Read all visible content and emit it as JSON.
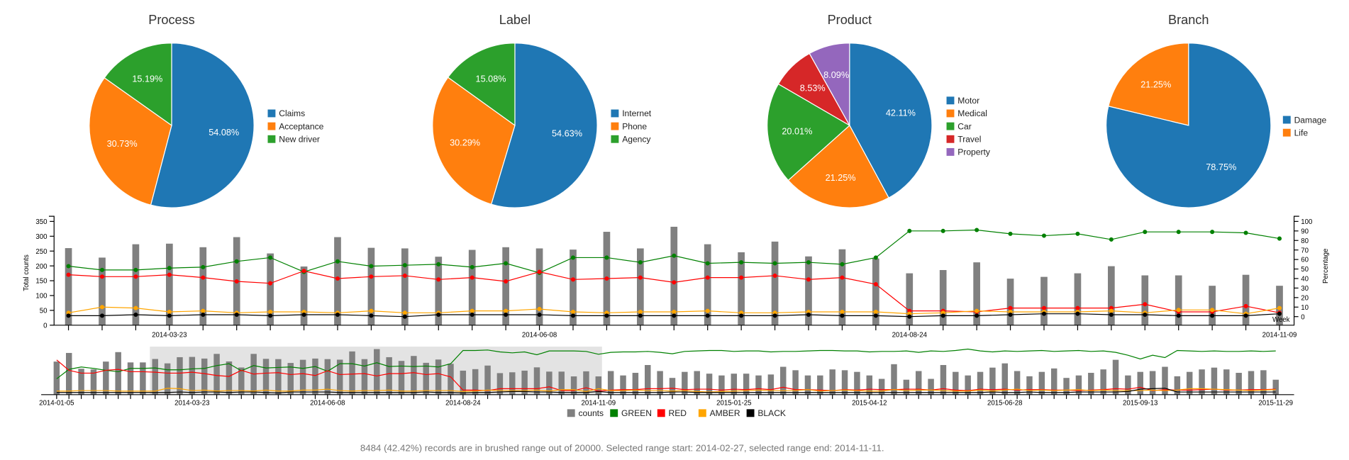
{
  "pies": [
    {
      "title": "Process",
      "slices": [
        {
          "label": "Claims",
          "value": 54.08,
          "text": "54.08%",
          "color": "#1f77b4"
        },
        {
          "label": "Acceptance",
          "value": 30.73,
          "text": "30.73%",
          "color": "#ff7f0e"
        },
        {
          "label": "New driver",
          "value": 15.19,
          "text": "15.19%",
          "color": "#2ca02c"
        }
      ]
    },
    {
      "title": "Label",
      "slices": [
        {
          "label": "Internet",
          "value": 54.63,
          "text": "54.63%",
          "color": "#1f77b4"
        },
        {
          "label": "Phone",
          "value": 30.29,
          "text": "30.29%",
          "color": "#ff7f0e"
        },
        {
          "label": "Agency",
          "value": 15.08,
          "text": "15.08%",
          "color": "#2ca02c"
        }
      ]
    },
    {
      "title": "Product",
      "slices": [
        {
          "label": "Motor",
          "value": 42.11,
          "text": "42.11%",
          "color": "#1f77b4"
        },
        {
          "label": "Medical",
          "value": 21.25,
          "text": "21.25%",
          "color": "#ff7f0e"
        },
        {
          "label": "Car",
          "value": 20.01,
          "text": "20.01%",
          "color": "#2ca02c"
        },
        {
          "label": "Travel",
          "value": 8.53,
          "text": "8.53%",
          "color": "#d62728"
        },
        {
          "label": "Property",
          "value": 8.09,
          "text": "8.09%",
          "color": "#9467bd"
        }
      ]
    },
    {
      "title": "Branch",
      "slices": [
        {
          "label": "Damage",
          "value": 78.75,
          "text": "78.75%",
          "color": "#1f77b4"
        },
        {
          "label": "Life",
          "value": 21.25,
          "text": "21.25%",
          "color": "#ff7f0e"
        }
      ]
    }
  ],
  "chart_data": [
    {
      "type": "bar+line",
      "xlabel": "Week",
      "ylabel": "Total counts",
      "ylabel_right": "Percentage",
      "x_domain": [
        "2014-02-27",
        "2014-11-11"
      ],
      "first_week": "2014-03-02",
      "interval_days": 7,
      "x_tick_labels": [
        "2014-03-23",
        "2014-06-08",
        "2014-08-24",
        "2014-11-09"
      ],
      "ylim": [
        0,
        350
      ],
      "y_ticks": [
        "0",
        "50",
        "100",
        "150",
        "200",
        "250",
        "300",
        "350"
      ],
      "ylim_right": [
        0,
        100
      ],
      "y_ticks_right": [
        "0",
        "10",
        "20",
        "30",
        "40",
        "50",
        "60",
        "70",
        "80",
        "90",
        "100"
      ],
      "counts": [
        260,
        228,
        273,
        275,
        263,
        297,
        242,
        198,
        297,
        261,
        259,
        231,
        254,
        263,
        259,
        255,
        315,
        259,
        332,
        273,
        246,
        282,
        232,
        256,
        225,
        175,
        186,
        212,
        157,
        163,
        175,
        199,
        168,
        168,
        133,
        170,
        133
      ],
      "series": [
        {
          "name": "GREEN",
          "color": "#008000",
          "values": [
            53,
            49,
            49,
            51,
            52,
            58,
            62,
            47,
            58,
            53,
            54,
            55,
            52,
            56,
            46,
            62,
            62,
            57,
            64,
            56,
            57,
            56,
            57,
            55,
            62,
            90,
            90,
            91,
            87,
            85,
            87,
            81,
            89,
            89,
            89,
            88,
            82
          ]
        },
        {
          "name": "RED",
          "color": "#ff0000",
          "values": [
            44,
            42,
            42,
            44,
            41,
            37,
            35,
            48,
            40,
            42,
            43,
            39,
            41,
            37,
            47,
            39,
            40,
            41,
            36,
            41,
            41,
            43,
            39,
            41,
            34,
            6,
            6,
            5,
            9,
            9,
            9,
            9,
            13,
            5,
            5,
            11,
            4
          ]
        },
        {
          "name": "AMBER",
          "color": "#ffa500",
          "values": [
            4,
            10,
            9,
            5,
            6,
            4,
            5,
            5,
            4,
            6,
            4,
            4,
            6,
            6,
            8,
            5,
            4,
            5,
            5,
            6,
            4,
            4,
            5,
            5,
            5,
            3,
            4,
            6,
            5,
            5,
            5,
            6,
            4,
            7,
            7,
            3,
            9
          ]
        },
        {
          "name": "BLACK",
          "color": "#000000",
          "values": [
            1,
            1,
            2,
            1,
            2,
            2,
            1,
            2,
            2,
            1,
            0,
            2,
            2,
            2,
            2,
            1,
            1,
            1,
            1,
            1,
            1,
            1,
            2,
            1,
            1,
            0,
            1,
            1,
            2,
            3,
            3,
            2,
            2,
            1,
            1,
            1,
            3
          ]
        }
      ]
    },
    {
      "type": "bar+line overview",
      "first_week": "2014-01-05",
      "interval_days": 7,
      "x_tick_labels": [
        "2014-01-05",
        "2014-03-23",
        "2014-06-08",
        "2014-08-24",
        "2014-11-09",
        "2015-01-25",
        "2015-04-12",
        "2015-06-28",
        "2015-09-13",
        "2015-11-29"
      ],
      "brush": [
        "2014-02-27",
        "2014-11-11"
      ],
      "counts": [
        241,
        304,
        189,
        184,
        241,
        310,
        235,
        235,
        260,
        228,
        273,
        275,
        263,
        297,
        242,
        198,
        297,
        261,
        259,
        231,
        254,
        263,
        259,
        255,
        315,
        259,
        332,
        273,
        246,
        282,
        232,
        256,
        225,
        175,
        186,
        212,
        157,
        163,
        175,
        199,
        168,
        168,
        133,
        170,
        133,
        172,
        140,
        159,
        216,
        172,
        122,
        166,
        172,
        153,
        140,
        153,
        153,
        140,
        147,
        203,
        178,
        140,
        140,
        184,
        178,
        166,
        140,
        115,
        222,
        109,
        172,
        115,
        216,
        166,
        140,
        166,
        197,
        228,
        172,
        134,
        166,
        191,
        122,
        140,
        159,
        184,
        254,
        140,
        166,
        172,
        203,
        134,
        166,
        184,
        197,
        184,
        159,
        172,
        178,
        109
      ],
      "series": [
        {
          "name": "GREEN",
          "color": "#008000",
          "values": [
            30,
            50,
            55,
            52,
            48,
            45,
            52,
            52,
            53,
            49,
            49,
            51,
            52,
            58,
            62,
            47,
            58,
            53,
            54,
            55,
            52,
            56,
            46,
            62,
            62,
            57,
            64,
            56,
            57,
            56,
            57,
            55,
            62,
            90,
            90,
            91,
            87,
            85,
            87,
            81,
            89,
            89,
            89,
            88,
            82,
            86,
            87,
            87,
            88,
            86,
            83,
            88,
            89,
            90,
            90,
            88,
            89,
            89,
            87,
            88,
            88,
            89,
            90,
            90,
            89,
            89,
            87,
            88,
            88,
            89,
            86,
            89,
            88,
            90,
            93,
            89,
            87,
            89,
            88,
            89,
            90,
            88,
            89,
            90,
            88,
            89,
            86,
            80,
            72,
            80,
            75,
            90,
            89,
            88,
            89,
            88,
            88,
            89,
            88,
            89
          ]
        },
        {
          "name": "RED",
          "color": "#ff0000",
          "values": [
            70,
            48,
            42,
            42,
            48,
            50,
            45,
            45,
            44,
            42,
            42,
            44,
            41,
            37,
            35,
            48,
            40,
            42,
            43,
            39,
            41,
            37,
            47,
            39,
            40,
            41,
            36,
            41,
            41,
            43,
            39,
            41,
            34,
            6,
            6,
            5,
            9,
            9,
            9,
            9,
            13,
            5,
            5,
            11,
            4,
            6,
            7,
            7,
            9,
            9,
            10,
            7,
            8,
            8,
            6,
            8,
            7,
            9,
            7,
            12,
            7,
            7,
            6,
            5,
            7,
            6,
            8,
            7,
            7,
            8,
            8,
            6,
            9,
            6,
            5,
            8,
            7,
            8,
            6,
            7,
            7,
            6,
            6,
            5,
            6,
            7,
            9,
            8,
            12,
            5,
            7,
            6,
            6,
            7,
            8,
            6,
            6,
            7,
            7,
            8
          ]
        },
        {
          "name": "AMBER",
          "color": "#ffa500",
          "values": [
            4,
            4,
            5,
            5,
            5,
            4,
            4,
            4,
            4,
            10,
            9,
            5,
            6,
            4,
            5,
            5,
            4,
            6,
            4,
            4,
            6,
            6,
            8,
            5,
            4,
            5,
            5,
            6,
            4,
            4,
            5,
            5,
            5,
            3,
            4,
            6,
            5,
            5,
            5,
            6,
            4,
            7,
            7,
            3,
            9,
            5,
            5,
            6,
            5,
            5,
            4,
            5,
            3,
            2,
            3,
            4,
            5,
            6,
            5,
            5,
            5,
            7,
            4,
            5,
            6,
            5,
            4,
            4,
            7,
            5,
            6,
            6,
            5,
            4,
            4,
            6,
            4,
            6,
            8,
            5,
            6,
            5,
            6,
            7,
            5,
            6,
            5,
            5,
            5,
            6,
            5,
            6,
            9,
            9,
            8,
            7,
            6,
            5,
            6,
            7
          ]
        },
        {
          "name": "BLACK",
          "color": "#000000",
          "values": [
            1,
            1,
            1,
            1,
            1,
            1,
            1,
            1,
            1,
            1,
            2,
            1,
            2,
            2,
            1,
            2,
            2,
            1,
            0,
            2,
            2,
            2,
            2,
            1,
            1,
            1,
            1,
            1,
            1,
            1,
            2,
            1,
            1,
            0,
            1,
            1,
            2,
            3,
            3,
            2,
            2,
            1,
            1,
            1,
            3,
            1,
            1,
            1,
            1,
            1,
            2,
            2,
            1,
            1,
            1,
            1,
            1,
            1,
            1,
            1,
            1,
            1,
            1,
            1,
            1,
            1,
            1,
            1,
            1,
            1,
            1,
            1,
            1,
            1,
            1,
            1,
            2,
            1,
            1,
            2,
            1,
            1,
            1,
            2,
            2,
            2,
            2,
            3,
            8,
            9,
            10,
            2,
            2,
            2,
            2,
            2,
            2,
            2,
            2,
            2
          ]
        }
      ]
    }
  ],
  "legend": [
    {
      "label": "counts",
      "color": "#808080"
    },
    {
      "label": "GREEN",
      "color": "#008000"
    },
    {
      "label": "RED",
      "color": "#ff0000"
    },
    {
      "label": "AMBER",
      "color": "#ffa500"
    },
    {
      "label": "BLACK",
      "color": "#000000"
    }
  ],
  "status_text": "8484 (42.42%) records are in brushed range out of 20000. Selected range start: 2014-02-27, selected range end: 2014-11-11."
}
